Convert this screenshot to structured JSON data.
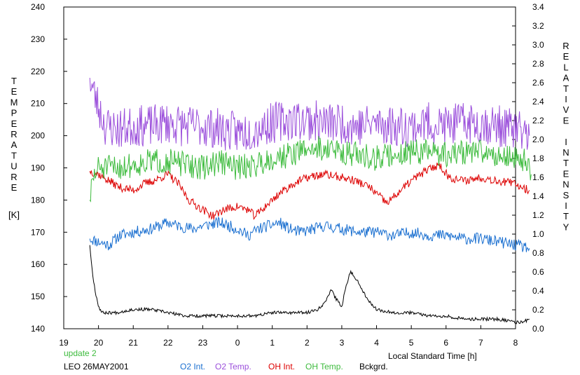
{
  "chart_data": {
    "type": "line",
    "left_axis": {
      "label_letters": [
        "T",
        "E",
        "M",
        "P",
        "E",
        "R",
        "A",
        "T",
        "U",
        "R",
        "E"
      ],
      "unit": "[K]",
      "range": [
        140,
        240
      ],
      "ticks": [
        "140",
        "150",
        "160",
        "170",
        "180",
        "190",
        "200",
        "210",
        "220",
        "230",
        "240"
      ]
    },
    "right_axis": {
      "label_letters": [
        "R",
        "E",
        "L",
        "A",
        "T",
        "I",
        "V",
        "E",
        "",
        "I",
        "N",
        "T",
        "E",
        "N",
        "S",
        "I",
        "T",
        "Y"
      ],
      "range": [
        0.0,
        3.4
      ],
      "ticks": [
        "0.0",
        "0.2",
        "0.4",
        "0.6",
        "0.8",
        "1.0",
        "1.2",
        "1.4",
        "1.6",
        "1.8",
        "2.0",
        "2.2",
        "2.4",
        "2.6",
        "2.8",
        "3.0",
        "3.2",
        "3.4"
      ]
    },
    "x_axis": {
      "label": "Local Standard Time [h]",
      "range": [
        19,
        32
      ],
      "ticks": [
        "19",
        "20",
        "21",
        "22",
        "23",
        "0",
        "1",
        "2",
        "3",
        "4",
        "5",
        "6",
        "7",
        "8"
      ]
    },
    "footer": {
      "update": "update 2",
      "station": "LEO 26MAY2001"
    },
    "series": [
      {
        "name": "O2 Int.",
        "color": "#1a6fd0",
        "axis": "left",
        "noise": 1.8,
        "seed": 11,
        "points": [
          [
            19.75,
            168
          ],
          [
            20.0,
            167
          ],
          [
            20.3,
            166
          ],
          [
            20.6,
            169
          ],
          [
            21.0,
            170
          ],
          [
            21.5,
            171
          ],
          [
            22.0,
            173
          ],
          [
            22.3,
            172
          ],
          [
            22.7,
            171
          ],
          [
            23.0,
            172
          ],
          [
            23.5,
            173
          ],
          [
            24.0,
            171
          ],
          [
            24.3,
            169
          ],
          [
            24.6,
            171
          ],
          [
            24.9,
            172
          ],
          [
            25.2,
            173
          ],
          [
            25.5,
            171
          ],
          [
            25.8,
            170
          ],
          [
            26.2,
            171
          ],
          [
            26.5,
            172
          ],
          [
            27.0,
            171
          ],
          [
            27.5,
            170
          ],
          [
            28.0,
            170
          ],
          [
            28.5,
            169
          ],
          [
            29.0,
            170
          ],
          [
            29.5,
            169
          ],
          [
            30.0,
            169
          ],
          [
            30.5,
            168
          ],
          [
            31.0,
            168
          ],
          [
            31.5,
            167
          ],
          [
            32.0,
            166
          ],
          [
            32.4,
            165
          ]
        ]
      },
      {
        "name": "O2 Temp.",
        "color": "#9b4fdb",
        "axis": "left",
        "noise": 6.5,
        "seed": 23,
        "points": [
          [
            19.75,
            218
          ],
          [
            19.9,
            212
          ],
          [
            20.2,
            203
          ],
          [
            20.6,
            202
          ],
          [
            21.0,
            203
          ],
          [
            21.5,
            203
          ],
          [
            22.0,
            204
          ],
          [
            22.5,
            203
          ],
          [
            23.0,
            203
          ],
          [
            23.5,
            202
          ],
          [
            24.0,
            201
          ],
          [
            24.5,
            202
          ],
          [
            25.0,
            204
          ],
          [
            25.5,
            205
          ],
          [
            26.0,
            205
          ],
          [
            26.5,
            204
          ],
          [
            27.0,
            204
          ],
          [
            27.5,
            203
          ],
          [
            28.0,
            204
          ],
          [
            28.5,
            203
          ],
          [
            29.0,
            203
          ],
          [
            29.5,
            204
          ],
          [
            30.0,
            203
          ],
          [
            30.5,
            204
          ],
          [
            31.0,
            204
          ],
          [
            31.5,
            203
          ],
          [
            32.0,
            202
          ],
          [
            32.4,
            200
          ]
        ]
      },
      {
        "name": "OH Int.",
        "color": "#dd0000",
        "axis": "left",
        "noise": 1.3,
        "seed": 37,
        "points": [
          [
            19.75,
            189
          ],
          [
            20.0,
            188
          ],
          [
            20.3,
            186
          ],
          [
            20.6,
            184
          ],
          [
            21.0,
            183
          ],
          [
            21.3,
            185
          ],
          [
            21.6,
            186
          ],
          [
            22.0,
            188
          ],
          [
            22.3,
            185
          ],
          [
            22.6,
            180
          ],
          [
            23.0,
            177
          ],
          [
            23.3,
            175
          ],
          [
            23.6,
            177
          ],
          [
            24.0,
            178
          ],
          [
            24.3,
            177
          ],
          [
            24.5,
            175
          ],
          [
            24.8,
            178
          ],
          [
            25.2,
            182
          ],
          [
            25.6,
            185
          ],
          [
            26.0,
            187
          ],
          [
            26.5,
            188
          ],
          [
            27.0,
            187
          ],
          [
            27.4,
            186
          ],
          [
            27.8,
            184
          ],
          [
            28.1,
            181
          ],
          [
            28.3,
            179
          ],
          [
            28.6,
            182
          ],
          [
            29.0,
            186
          ],
          [
            29.4,
            189
          ],
          [
            29.8,
            191
          ],
          [
            30.1,
            187
          ],
          [
            30.5,
            186
          ],
          [
            31.0,
            187
          ],
          [
            31.5,
            186
          ],
          [
            32.0,
            185
          ],
          [
            32.4,
            183
          ]
        ]
      },
      {
        "name": "OH Temp.",
        "color": "#3dbb3d",
        "axis": "left",
        "noise": 4.0,
        "seed": 51,
        "points": [
          [
            19.75,
            180
          ],
          [
            19.85,
            187
          ],
          [
            20.0,
            190
          ],
          [
            20.5,
            190
          ],
          [
            21.0,
            191
          ],
          [
            21.5,
            192
          ],
          [
            22.0,
            192
          ],
          [
            22.5,
            191
          ],
          [
            23.0,
            190
          ],
          [
            23.5,
            192
          ],
          [
            24.0,
            190
          ],
          [
            24.5,
            191
          ],
          [
            25.0,
            193
          ],
          [
            25.5,
            194
          ],
          [
            26.0,
            196
          ],
          [
            26.5,
            196
          ],
          [
            27.0,
            195
          ],
          [
            27.5,
            194
          ],
          [
            28.0,
            193
          ],
          [
            28.5,
            194
          ],
          [
            29.0,
            195
          ],
          [
            29.5,
            195
          ],
          [
            30.0,
            194
          ],
          [
            30.5,
            195
          ],
          [
            31.0,
            195
          ],
          [
            31.5,
            194
          ],
          [
            32.0,
            193
          ],
          [
            32.3,
            192
          ],
          [
            32.45,
            188
          ]
        ]
      },
      {
        "name": "Bckgrd.",
        "color": "#000000",
        "axis": "left",
        "noise": 0.5,
        "seed": 67,
        "points": [
          [
            19.75,
            166
          ],
          [
            19.82,
            158
          ],
          [
            19.9,
            152
          ],
          [
            20.0,
            147
          ],
          [
            20.1,
            145
          ],
          [
            20.5,
            145
          ],
          [
            21.0,
            146
          ],
          [
            21.5,
            146
          ],
          [
            22.0,
            145
          ],
          [
            22.5,
            144
          ],
          [
            23.0,
            144
          ],
          [
            23.5,
            144
          ],
          [
            24.0,
            144
          ],
          [
            24.5,
            144
          ],
          [
            25.0,
            145
          ],
          [
            25.5,
            145
          ],
          [
            26.0,
            145
          ],
          [
            26.3,
            146
          ],
          [
            26.5,
            148
          ],
          [
            26.7,
            152
          ],
          [
            26.85,
            149
          ],
          [
            27.0,
            147
          ],
          [
            27.1,
            152
          ],
          [
            27.25,
            158
          ],
          [
            27.5,
            154
          ],
          [
            27.75,
            149
          ],
          [
            28.0,
            146
          ],
          [
            28.5,
            145
          ],
          [
            29.0,
            145
          ],
          [
            29.5,
            144
          ],
          [
            30.0,
            144
          ],
          [
            30.5,
            143
          ],
          [
            31.0,
            143
          ],
          [
            31.5,
            143
          ],
          [
            32.0,
            142
          ],
          [
            32.2,
            142
          ],
          [
            32.4,
            143
          ]
        ]
      }
    ]
  }
}
